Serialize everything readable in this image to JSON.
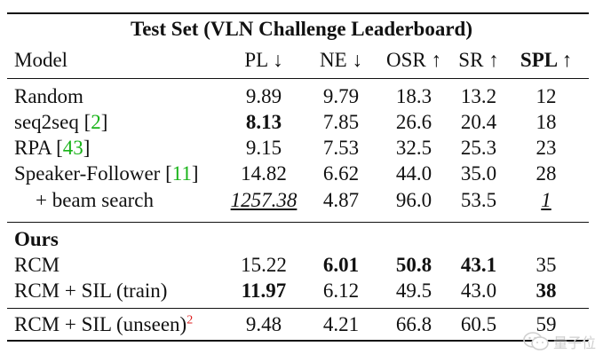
{
  "table": {
    "title": "Test Set (VLN Challenge Leaderboard)",
    "headers": {
      "model": "Model",
      "pl": "PL ↓",
      "ne": "NE ↓",
      "osr": "OSR ↑",
      "sr": "SR ↑",
      "spl": "SPL ↑"
    },
    "baseline_rows": [
      {
        "model": "Random",
        "ref": "",
        "pl": "9.89",
        "ne": "9.79",
        "osr": "18.3",
        "sr": "13.2",
        "spl": "12"
      },
      {
        "model": "seq2seq",
        "ref": "2",
        "pl": "8.13",
        "ne": "7.85",
        "osr": "26.6",
        "sr": "20.4",
        "spl": "18"
      },
      {
        "model": "RPA",
        "ref": "43",
        "pl": "9.15",
        "ne": "7.53",
        "osr": "32.5",
        "sr": "25.3",
        "spl": "23"
      },
      {
        "model": "Speaker-Follower",
        "ref": "11",
        "pl": "14.82",
        "ne": "6.62",
        "osr": "44.0",
        "sr": "35.0",
        "spl": "28"
      },
      {
        "model": "+ beam search",
        "ref": "",
        "pl": "1257.38",
        "ne": "4.87",
        "osr": "96.0",
        "sr": "53.5",
        "spl": "1"
      }
    ],
    "ours_label": "Ours",
    "ours_rows": [
      {
        "model": "RCM",
        "pl": "15.22",
        "ne": "6.01",
        "osr": "50.8",
        "sr": "43.1",
        "spl": "35"
      },
      {
        "model": "RCM + SIL (train)",
        "pl": "11.97",
        "ne": "6.12",
        "osr": "49.5",
        "sr": "43.0",
        "spl": "38"
      }
    ],
    "unseen_row": {
      "model": "RCM + SIL (unseen)",
      "footnote": "2",
      "pl": "9.48",
      "ne": "4.21",
      "osr": "66.8",
      "sr": "60.5",
      "spl": "59"
    }
  },
  "watermark": {
    "text": "量子位",
    "icon": "wechat-logo-icon"
  },
  "colors": {
    "citation": "#19b319",
    "footnote": "#dd1f1f",
    "text": "#111111"
  }
}
